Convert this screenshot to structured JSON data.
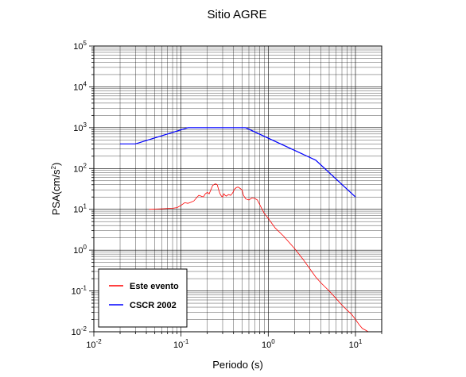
{
  "chart_data": {
    "type": "line",
    "title": "Sitio AGRE",
    "xlabel": "Periodo (s)",
    "ylabel": {
      "base": "PSA(cm/s",
      "sup": "2",
      "tail": ")"
    },
    "xscale": "log",
    "yscale": "log",
    "xlim": [
      0.01,
      20
    ],
    "ylim": [
      0.01,
      100000
    ],
    "grid": true,
    "legend_position": "bottom-left",
    "x_ticks": [
      {
        "base": "10",
        "exp": "-2",
        "value": 0.01
      },
      {
        "base": "10",
        "exp": "-1",
        "value": 0.1
      },
      {
        "base": "10",
        "exp": "0",
        "value": 1
      },
      {
        "base": "10",
        "exp": "1",
        "value": 10
      }
    ],
    "y_ticks": [
      {
        "base": "10",
        "exp": "-2",
        "value": 0.01
      },
      {
        "base": "10",
        "exp": "-1",
        "value": 0.1
      },
      {
        "base": "10",
        "exp": "0",
        "value": 1
      },
      {
        "base": "10",
        "exp": "1",
        "value": 10
      },
      {
        "base": "10",
        "exp": "2",
        "value": 100
      },
      {
        "base": "10",
        "exp": "3",
        "value": 1000
      },
      {
        "base": "10",
        "exp": "4",
        "value": 10000
      },
      {
        "base": "10",
        "exp": "5",
        "value": 100000
      }
    ],
    "series": [
      {
        "name": "Este evento",
        "color": "#ff0000",
        "points": [
          [
            0.043,
            10.0
          ],
          [
            0.06,
            10.3
          ],
          [
            0.08,
            10.6
          ],
          [
            0.09,
            11.0
          ],
          [
            0.1,
            12.5
          ],
          [
            0.11,
            14.5
          ],
          [
            0.12,
            14.0
          ],
          [
            0.13,
            15.0
          ],
          [
            0.14,
            16.0
          ],
          [
            0.15,
            19.0
          ],
          [
            0.16,
            22.0
          ],
          [
            0.17,
            21.0
          ],
          [
            0.18,
            20.0
          ],
          [
            0.19,
            24.0
          ],
          [
            0.2,
            26.0
          ],
          [
            0.21,
            24.0
          ],
          [
            0.22,
            30.0
          ],
          [
            0.23,
            38.0
          ],
          [
            0.24,
            41.0
          ],
          [
            0.25,
            42.0
          ],
          [
            0.26,
            40.0
          ],
          [
            0.27,
            30.0
          ],
          [
            0.28,
            24.0
          ],
          [
            0.29,
            21.0
          ],
          [
            0.3,
            20.0
          ],
          [
            0.31,
            24.0
          ],
          [
            0.32,
            22.0
          ],
          [
            0.33,
            21.0
          ],
          [
            0.35,
            23.0
          ],
          [
            0.37,
            22.0
          ],
          [
            0.39,
            25.0
          ],
          [
            0.41,
            31.0
          ],
          [
            0.43,
            34.0
          ],
          [
            0.45,
            35.0
          ],
          [
            0.47,
            33.0
          ],
          [
            0.5,
            30.0
          ],
          [
            0.52,
            22.0
          ],
          [
            0.55,
            18.0
          ],
          [
            0.6,
            17.0
          ],
          [
            0.65,
            19.0
          ],
          [
            0.7,
            18.5
          ],
          [
            0.75,
            17.0
          ],
          [
            0.8,
            13.0
          ],
          [
            0.85,
            10.0
          ],
          [
            0.9,
            8.0
          ],
          [
            1.0,
            6.0
          ],
          [
            1.2,
            3.5
          ],
          [
            1.5,
            2.2
          ],
          [
            2.0,
            1.1
          ],
          [
            2.5,
            0.6
          ],
          [
            3.0,
            0.35
          ],
          [
            3.5,
            0.22
          ],
          [
            4.0,
            0.16
          ],
          [
            5.0,
            0.1
          ],
          [
            6.0,
            0.065
          ],
          [
            7.0,
            0.045
          ],
          [
            8.0,
            0.034
          ],
          [
            9.0,
            0.027
          ],
          [
            10.0,
            0.02
          ],
          [
            11.0,
            0.015
          ],
          [
            12.0,
            0.012
          ],
          [
            13.0,
            0.011
          ],
          [
            14.0,
            0.01
          ],
          [
            15.0,
            0.01
          ]
        ]
      },
      {
        "name": "CSCR 2002",
        "color": "#0000ff",
        "points": [
          [
            0.02,
            400
          ],
          [
            0.03,
            400
          ],
          [
            0.12,
            1000
          ],
          [
            0.55,
            1000
          ],
          [
            3.5,
            160
          ],
          [
            10.0,
            20
          ]
        ]
      }
    ]
  }
}
